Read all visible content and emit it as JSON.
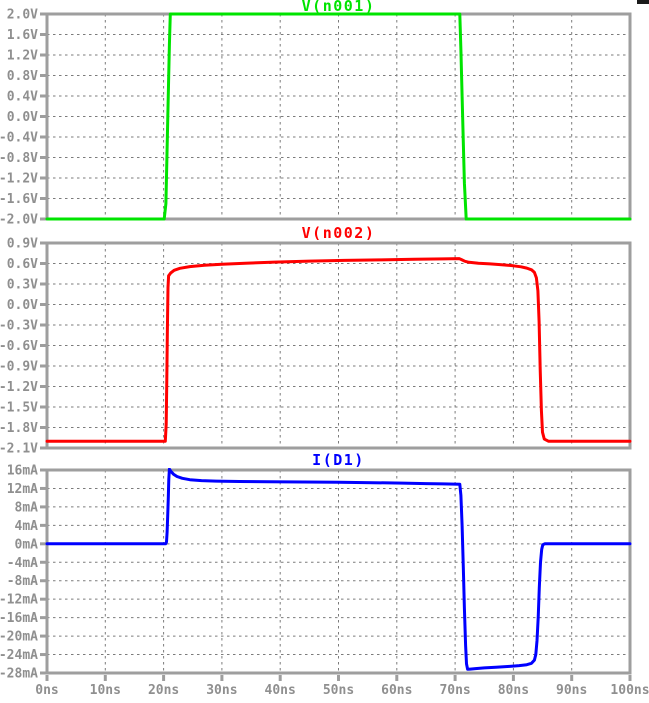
{
  "x_axis": {
    "lim": [
      0,
      100
    ],
    "tick_labels": [
      "0ns",
      "10ns",
      "20ns",
      "30ns",
      "40ns",
      "50ns",
      "60ns",
      "70ns",
      "80ns",
      "90ns",
      "100ns"
    ]
  },
  "styles": {
    "background": "#ffffff",
    "border_color": "#9e9e9e",
    "grid_color": "#7b7b7b",
    "label_color": "#8f8f8f",
    "trace_green": "#00e400",
    "trace_red": "#ff0000",
    "trace_blue": "#0000ff"
  },
  "chart_data": [
    {
      "type": "line",
      "title": "V(n001)",
      "color": "#00e400",
      "ylim": [
        -2.0,
        2.0
      ],
      "y_tick_labels": [
        "2.0V",
        "1.6V",
        "1.2V",
        "0.8V",
        "0.4V",
        "0.0V",
        "-0.4V",
        "-0.8V",
        "-1.2V",
        "-1.6V",
        "-2.0V"
      ],
      "xlim": [
        0,
        100
      ],
      "grid": true,
      "series": [
        {
          "name": "V(n001)",
          "points": [
            [
              0,
              -2
            ],
            [
              20.1,
              -2
            ],
            [
              20.4,
              -1.7
            ],
            [
              20.55,
              -0.9
            ],
            [
              20.7,
              -0.1
            ],
            [
              20.85,
              0.7
            ],
            [
              21.0,
              1.4
            ],
            [
              21.15,
              2
            ],
            [
              70.8,
              2
            ],
            [
              71.0,
              1.3
            ],
            [
              71.2,
              0.4
            ],
            [
              71.4,
              -0.5
            ],
            [
              71.6,
              -1.3
            ],
            [
              71.9,
              -2
            ],
            [
              100,
              -2
            ]
          ]
        }
      ]
    },
    {
      "type": "line",
      "title": "V(n002)",
      "color": "#ff0000",
      "ylim": [
        -2.1,
        0.9
      ],
      "y_tick_labels": [
        "0.9V",
        "0.6V",
        "0.3V",
        "0.0V",
        "-0.3V",
        "-0.6V",
        "-0.9V",
        "-1.2V",
        "-1.5V",
        "-1.8V",
        "-2.1V"
      ],
      "xlim": [
        0,
        100
      ],
      "grid": true,
      "series": [
        {
          "name": "V(n002)",
          "points": [
            [
              0,
              -2
            ],
            [
              20.3,
              -2
            ],
            [
              20.45,
              -1.75
            ],
            [
              20.55,
              -1.1
            ],
            [
              20.65,
              -0.35
            ],
            [
              20.75,
              0.25
            ],
            [
              20.85,
              0.42
            ],
            [
              21.2,
              0.46
            ],
            [
              21.8,
              0.5
            ],
            [
              22.8,
              0.53
            ],
            [
              24.5,
              0.555
            ],
            [
              27,
              0.575
            ],
            [
              30,
              0.59
            ],
            [
              34,
              0.605
            ],
            [
              39,
              0.62
            ],
            [
              45,
              0.635
            ],
            [
              51,
              0.645
            ],
            [
              57,
              0.653
            ],
            [
              63,
              0.661
            ],
            [
              68,
              0.668
            ],
            [
              70.7,
              0.672
            ],
            [
              71.1,
              0.657
            ],
            [
              71.7,
              0.632
            ],
            [
              72.4,
              0.617
            ],
            [
              74,
              0.605
            ],
            [
              76,
              0.594
            ],
            [
              78,
              0.582
            ],
            [
              80,
              0.566
            ],
            [
              81.3,
              0.551
            ],
            [
              82.3,
              0.533
            ],
            [
              83.1,
              0.508
            ],
            [
              83.6,
              0.47
            ],
            [
              83.95,
              0.39
            ],
            [
              84.2,
              0.2
            ],
            [
              84.4,
              -0.25
            ],
            [
              84.6,
              -0.95
            ],
            [
              84.8,
              -1.55
            ],
            [
              85.0,
              -1.87
            ],
            [
              85.3,
              -1.97
            ],
            [
              86,
              -2
            ],
            [
              100,
              -2
            ]
          ]
        }
      ]
    },
    {
      "type": "line",
      "title": "I(D1)",
      "color": "#0000ff",
      "ylim": [
        -28,
        16
      ],
      "y_tick_labels": [
        "16mA",
        "12mA",
        "8mA",
        "4mA",
        "0mA",
        "-4mA",
        "-8mA",
        "-12mA",
        "-16mA",
        "-20mA",
        "-24mA",
        "-28mA"
      ],
      "xlim": [
        0,
        100
      ],
      "grid": true,
      "series": [
        {
          "name": "I(D1)",
          "points": [
            [
              0,
              0
            ],
            [
              20.35,
              0
            ],
            [
              20.5,
              0.4
            ],
            [
              20.6,
              2.5
            ],
            [
              20.7,
              6
            ],
            [
              20.8,
              10
            ],
            [
              20.9,
              14
            ],
            [
              21.0,
              16.2
            ],
            [
              21.25,
              15.7
            ],
            [
              21.7,
              15.1
            ],
            [
              22.3,
              14.6
            ],
            [
              23.2,
              14.2
            ],
            [
              24.5,
              13.9
            ],
            [
              26.5,
              13.7
            ],
            [
              29,
              13.6
            ],
            [
              33,
              13.5
            ],
            [
              38,
              13.45
            ],
            [
              44,
              13.4
            ],
            [
              50,
              13.35
            ],
            [
              56,
              13.25
            ],
            [
              61,
              13.15
            ],
            [
              65,
              13.05
            ],
            [
              68,
              12.98
            ],
            [
              70.8,
              12.9
            ],
            [
              71.0,
              10.5
            ],
            [
              71.2,
              4
            ],
            [
              71.4,
              -5
            ],
            [
              71.6,
              -14
            ],
            [
              71.8,
              -22
            ],
            [
              71.95,
              -26
            ],
            [
              72.15,
              -27.2
            ],
            [
              72.6,
              -27.15
            ],
            [
              73.5,
              -27.05
            ],
            [
              75,
              -26.9
            ],
            [
              77,
              -26.75
            ],
            [
              79,
              -26.6
            ],
            [
              81,
              -26.4
            ],
            [
              82.3,
              -26.2
            ],
            [
              83.1,
              -25.9
            ],
            [
              83.6,
              -25.2
            ],
            [
              83.85,
              -24
            ],
            [
              84.05,
              -21
            ],
            [
              84.25,
              -16
            ],
            [
              84.45,
              -9.5
            ],
            [
              84.65,
              -4
            ],
            [
              84.85,
              -1.2
            ],
            [
              85.05,
              -0.2
            ],
            [
              85.4,
              0
            ],
            [
              100,
              0
            ]
          ]
        }
      ]
    }
  ]
}
